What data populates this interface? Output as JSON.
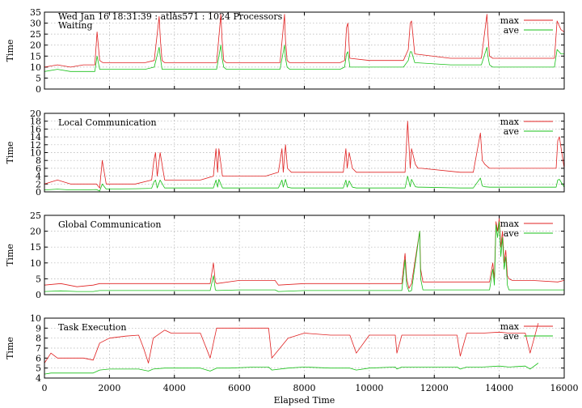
{
  "chart_data": {
    "type": "line",
    "header": "Wed Jan 16 18:31:39 : atlas571 : 1024 Processors",
    "xlabel": "Elapsed Time",
    "xlim": [
      0,
      16000
    ],
    "xticks": [
      "0",
      "2000",
      "4000",
      "6000",
      "8000",
      "10000",
      "12000",
      "14000",
      "16000"
    ],
    "legend": {
      "position": "top-right",
      "entries": [
        "max",
        "ave"
      ]
    },
    "colors": {
      "max": "#e02020",
      "ave": "#18c018"
    },
    "grid": true,
    "panels": [
      {
        "title": "Waiting",
        "ylabel": "Time",
        "ylim": [
          0,
          35
        ],
        "yticks": [
          "0",
          "5",
          "10",
          "15",
          "20",
          "25",
          "30",
          "35"
        ],
        "series": [
          {
            "name": "max",
            "x": [
              0,
              400,
              800,
              1200,
              1550,
              1620,
              1700,
              1800,
              2500,
              3100,
              3380,
              3530,
              3570,
              3620,
              3700,
              4500,
              5000,
              5300,
              5430,
              5470,
              5520,
              5600,
              6500,
              7000,
              7250,
              7390,
              7420,
              7470,
              7550,
              8500,
              9100,
              9240,
              9300,
              9340,
              9400,
              10000,
              10900,
              11050,
              11200,
              11260,
              11300,
              11400,
              12500,
              13000,
              13200,
              13450,
              13620,
              13650,
              13700,
              13800,
              14500,
              15300,
              15700,
              15780,
              15900,
              16000
            ],
            "values": [
              10,
              11,
              10,
              11,
              11,
              26,
              13,
              12,
              12,
              12,
              13,
              33,
              22,
              13,
              12,
              12,
              12,
              12,
              34,
              22,
              13,
              12,
              12,
              12,
              12,
              34,
              22,
              13,
              12,
              12,
              12,
              13,
              28,
              30,
              14,
              13,
              13,
              13,
              18,
              30,
              31,
              16,
              14,
              14,
              14,
              14,
              34,
              25,
              15,
              14,
              14,
              14,
              14,
              31,
              27,
              26
            ]
          },
          {
            "name": "ave",
            "x": [
              0,
              400,
              800,
              1200,
              1550,
              1620,
              1700,
              1800,
              2500,
              3100,
              3380,
              3530,
              3570,
              3620,
              3700,
              4500,
              5000,
              5300,
              5430,
              5470,
              5520,
              5600,
              6500,
              7000,
              7250,
              7390,
              7420,
              7470,
              7550,
              8500,
              9100,
              9240,
              9300,
              9340,
              9400,
              10000,
              10900,
              11050,
              11200,
              11260,
              11300,
              11400,
              12500,
              13000,
              13200,
              13450,
              13620,
              13650,
              13700,
              13800,
              14500,
              15300,
              15700,
              15780,
              15900,
              16000
            ],
            "values": [
              8,
              9,
              8,
              8,
              8,
              15,
              9,
              9,
              9,
              9,
              10,
              19,
              14,
              9,
              9,
              9,
              9,
              9,
              20,
              14,
              10,
              9,
              9,
              9,
              9,
              20,
              14,
              10,
              9,
              9,
              9,
              10,
              16,
              17,
              10,
              10,
              10,
              10,
              13,
              17,
              17,
              12,
              11,
              11,
              11,
              11,
              19,
              15,
              11,
              10,
              10,
              10,
              10,
              18,
              16,
              16
            ]
          }
        ]
      },
      {
        "title": "Local Communication",
        "ylabel": "Time",
        "ylim": [
          0,
          20
        ],
        "yticks": [
          "0",
          "2",
          "4",
          "6",
          "8",
          "10",
          "12",
          "14",
          "16",
          "18",
          "20"
        ],
        "series": [
          {
            "name": "max",
            "x": [
              0,
              400,
              800,
              1200,
              1600,
              1700,
              1780,
              1900,
              2800,
              3300,
              3370,
              3420,
              3470,
              3560,
              3700,
              4800,
              5200,
              5280,
              5330,
              5370,
              5480,
              5600,
              6800,
              7200,
              7310,
              7350,
              7420,
              7480,
              7600,
              8800,
              9200,
              9280,
              9320,
              9380,
              9480,
              9600,
              10800,
              11100,
              11180,
              11260,
              11300,
              11420,
              11500,
              11600,
              12800,
              13200,
              13420,
              13480,
              13560,
              13700,
              14800,
              15600,
              15750,
              15800,
              15850,
              16000
            ],
            "values": [
              2,
              3,
              2,
              2,
              2,
              1,
              8,
              2,
              2,
              3,
              8,
              10,
              4,
              10,
              3,
              3,
              4,
              11,
              5,
              11,
              4,
              4,
              4,
              5,
              11,
              5,
              12,
              6,
              5,
              5,
              5,
              11,
              6,
              10,
              6,
              5,
              5,
              5,
              18,
              6,
              11,
              7,
              6,
              6,
              5,
              5,
              15,
              8,
              7,
              6,
              6,
              6,
              6,
              13,
              14,
              6
            ]
          },
          {
            "name": "ave",
            "x": [
              0,
              400,
              800,
              1200,
              1600,
              1700,
              1780,
              1900,
              2800,
              3300,
              3370,
              3420,
              3470,
              3560,
              3700,
              4800,
              5200,
              5280,
              5330,
              5370,
              5480,
              5600,
              6800,
              7200,
              7310,
              7350,
              7420,
              7480,
              7600,
              8800,
              9200,
              9280,
              9320,
              9380,
              9480,
              9600,
              10800,
              11100,
              11180,
              11260,
              11300,
              11420,
              11500,
              11600,
              12800,
              13200,
              13420,
              13480,
              13560,
              13700,
              14800,
              15600,
              15750,
              15800,
              15850,
              16000
            ],
            "values": [
              0.5,
              0.7,
              0.5,
              0.5,
              0.6,
              0.2,
              2,
              0.7,
              0.8,
              0.9,
              2.5,
              3,
              1,
              3,
              1,
              1,
              1,
              3,
              1.2,
              3.2,
              1,
              1,
              1,
              1,
              3,
              1.2,
              3.2,
              1.2,
              1,
              1,
              1,
              3,
              1.2,
              2.8,
              1.2,
              1,
              1,
              1,
              4,
              1.3,
              3.2,
              1.3,
              1.2,
              1.2,
              1,
              1,
              3.5,
              1.5,
              1.3,
              1.2,
              1.2,
              1.2,
              1.2,
              3,
              3.2,
              1.2
            ]
          }
        ]
      },
      {
        "title": "Global Communication",
        "ylabel": "Time",
        "ylim": [
          0,
          25
        ],
        "yticks": [
          "0",
          "5",
          "10",
          "15",
          "20",
          "25"
        ],
        "series": [
          {
            "name": "max",
            "x": [
              0,
              500,
              1000,
              1500,
              1700,
              2500,
              3500,
              4500,
              5100,
              5200,
              5260,
              5300,
              6000,
              7100,
              7200,
              8000,
              9000,
              10000,
              11000,
              11100,
              11150,
              11220,
              11300,
              11550,
              11580,
              11650,
              12000,
              13000,
              13700,
              13800,
              13850,
              13900,
              13950,
              14000,
              14050,
              14100,
              14150,
              14200,
              14250,
              14300,
              14400,
              15000,
              15800,
              16000
            ],
            "values": [
              3,
              3.5,
              2.5,
              3,
              3.5,
              3.5,
              3.5,
              3.5,
              3.5,
              10,
              4,
              3.5,
              4.5,
              4.5,
              3,
              3.5,
              3.5,
              3.5,
              3.5,
              13,
              5,
              2,
              3.5,
              20,
              8,
              4,
              4,
              4,
              4,
              10,
              5,
              23,
              20,
              24,
              15,
              20,
              10,
              14,
              6,
              5,
              4.5,
              4.5,
              4,
              4.5
            ]
          },
          {
            "name": "ave",
            "x": [
              0,
              500,
              1000,
              1500,
              1700,
              2500,
              3500,
              4500,
              5100,
              5200,
              5260,
              5300,
              6000,
              7100,
              7200,
              8000,
              9000,
              10000,
              11000,
              11100,
              11150,
              11220,
              11300,
              11550,
              11580,
              11650,
              12000,
              13000,
              13700,
              13800,
              13850,
              13900,
              13950,
              14000,
              14050,
              14100,
              14150,
              14200,
              14250,
              14300,
              14400,
              15000,
              15800,
              16000
            ],
            "values": [
              1,
              1.2,
              1,
              1,
              1.3,
              1.3,
              1.3,
              1.3,
              1.3,
              6,
              1.5,
              1.3,
              1.5,
              1.5,
              1,
              1.3,
              1.3,
              1.3,
              1.3,
              11,
              3,
              1,
              1.3,
              20,
              5,
              1.5,
              1.5,
              1.5,
              1.5,
              8,
              3,
              22,
              18,
              23,
              12,
              18,
              8,
              12,
              3,
              1.5,
              1.5,
              1.5,
              1.5,
              1.5
            ]
          }
        ]
      },
      {
        "title": "Task Execution",
        "ylabel": "Time",
        "ylim": [
          4,
          10
        ],
        "yticks": [
          "4",
          "5",
          "6",
          "7",
          "8",
          "9",
          "10"
        ],
        "series": [
          {
            "name": "max",
            "x": [
              0,
              200,
              400,
              800,
              1200,
              1500,
              1700,
              2000,
              2500,
              2900,
              3050,
              3200,
              3350,
              3700,
              3900,
              4200,
              4800,
              5100,
              5300,
              5700,
              6500,
              6900,
              7000,
              7500,
              8000,
              8800,
              9400,
              9600,
              10000,
              10800,
              10850,
              11000,
              11500,
              12000,
              12700,
              12800,
              13000,
              13500,
              14000,
              14300,
              14800,
              14950,
              15200
            ],
            "values": [
              5.5,
              6.5,
              6,
              6,
              6,
              5.8,
              7.5,
              8,
              8.2,
              8.3,
              7,
              5.5,
              8,
              8.8,
              8.5,
              8.5,
              8.5,
              6,
              9,
              9,
              9,
              9,
              6,
              8,
              8.5,
              8.3,
              8.3,
              6.5,
              8.3,
              8.3,
              6.5,
              8.3,
              8.3,
              8.3,
              8.3,
              6.2,
              8.5,
              8.5,
              8.6,
              8.5,
              8.5,
              6.5,
              9.5
            ]
          },
          {
            "name": "ave",
            "x": [
              0,
              200,
              400,
              800,
              1200,
              1500,
              1700,
              2000,
              2500,
              2900,
              3050,
              3200,
              3350,
              3700,
              3900,
              4200,
              4800,
              5100,
              5300,
              5700,
              6500,
              6900,
              7000,
              7500,
              8000,
              8800,
              9400,
              9600,
              10000,
              10800,
              10850,
              11000,
              11500,
              12000,
              12700,
              12800,
              13000,
              13500,
              14000,
              14300,
              14800,
              14950,
              15200
            ],
            "values": [
              4.4,
              4.5,
              4.5,
              4.5,
              4.5,
              4.5,
              4.8,
              4.9,
              4.9,
              4.9,
              4.8,
              4.7,
              4.9,
              5,
              5,
              5,
              5,
              4.7,
              5,
              5,
              5.1,
              5.1,
              4.8,
              5,
              5.1,
              5,
              5,
              4.8,
              5,
              5.1,
              4.9,
              5.1,
              5.1,
              5.1,
              5.1,
              4.9,
              5.1,
              5.1,
              5.2,
              5.1,
              5.2,
              4.9,
              5.5
            ]
          }
        ]
      }
    ]
  }
}
